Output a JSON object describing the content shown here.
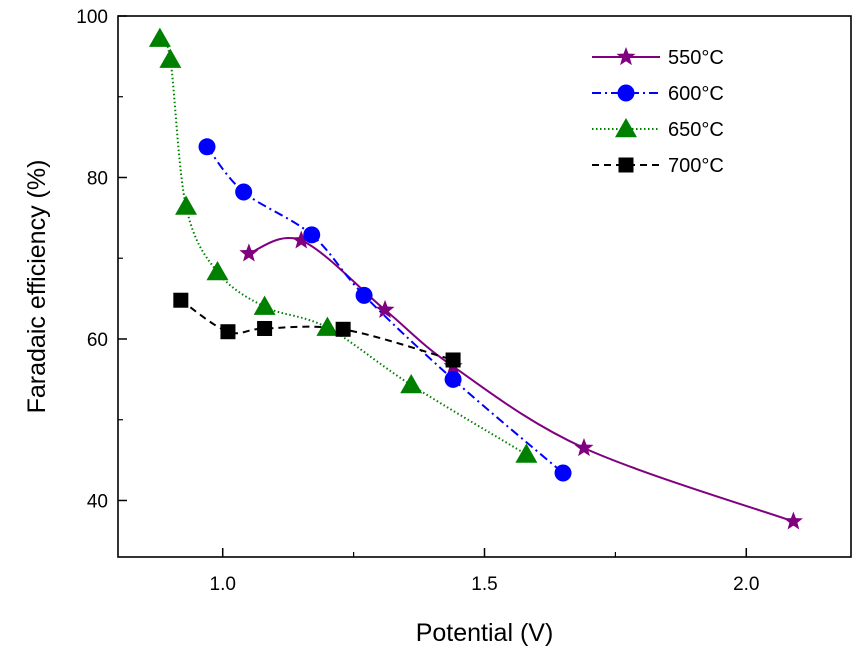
{
  "chart_data": {
    "type": "line",
    "title": "",
    "xlabel": "Potential (V)",
    "ylabel": "Faradaic efficiency (%)",
    "xlim": [
      0.8,
      2.2
    ],
    "ylim": [
      33,
      100
    ],
    "x_ticks": [
      {
        "value": 1.0,
        "label": "1.0"
      },
      {
        "value": 1.5,
        "label": "1.5"
      },
      {
        "value": 2.0,
        "label": "2.0"
      }
    ],
    "y_ticks": [
      {
        "value": 40,
        "label": "40"
      },
      {
        "value": 60,
        "label": "60"
      },
      {
        "value": 80,
        "label": "80"
      },
      {
        "value": 100,
        "label": "100"
      }
    ],
    "grid": false,
    "legend_position": "top-right",
    "series": [
      {
        "name": "550°C",
        "color": "#800080",
        "marker": "star",
        "line": "solid",
        "points": [
          [
            1.05,
            70.6
          ],
          [
            1.15,
            72.2
          ],
          [
            1.31,
            63.6
          ],
          [
            1.44,
            56.6
          ],
          [
            1.69,
            46.5
          ],
          [
            2.09,
            37.4
          ]
        ]
      },
      {
        "name": "600°C",
        "color": "#0000ff",
        "marker": "circle",
        "line": "dashdot",
        "points": [
          [
            0.97,
            83.8
          ],
          [
            1.04,
            78.2
          ],
          [
            1.17,
            72.9
          ],
          [
            1.27,
            65.4
          ],
          [
            1.44,
            55.0
          ],
          [
            1.65,
            43.4
          ]
        ]
      },
      {
        "name": "650°C",
        "color": "#008000",
        "marker": "triangle",
        "line": "dotted",
        "points": [
          [
            0.88,
            97.2
          ],
          [
            0.9,
            94.6
          ],
          [
            0.93,
            76.4
          ],
          [
            0.99,
            68.3
          ],
          [
            1.08,
            64.0
          ],
          [
            1.2,
            61.4
          ],
          [
            1.36,
            54.3
          ],
          [
            1.58,
            45.7
          ]
        ]
      },
      {
        "name": "700°C",
        "color": "#000000",
        "marker": "square",
        "line": "dashed",
        "points": [
          [
            0.92,
            64.8
          ],
          [
            1.01,
            60.9
          ],
          [
            1.08,
            61.3
          ],
          [
            1.23,
            61.2
          ],
          [
            1.44,
            57.4
          ]
        ]
      }
    ]
  }
}
